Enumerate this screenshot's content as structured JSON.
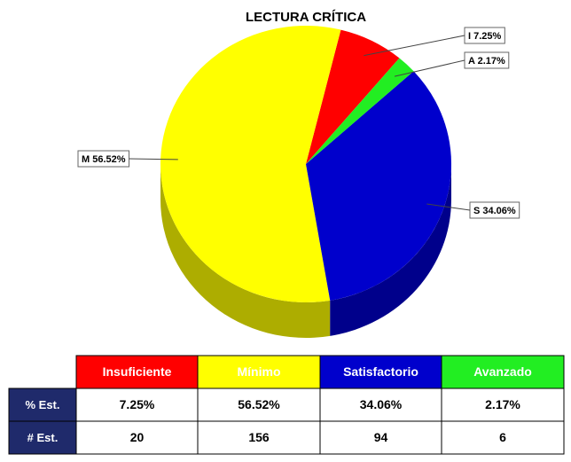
{
  "chart_data": {
    "type": "pie",
    "title": "LECTURA CRÍTICA",
    "categories": [
      "Insuficiente",
      "Mínimo",
      "Satisfactorio",
      "Avanzado"
    ],
    "values": [
      7.25,
      56.52,
      34.06,
      2.17
    ],
    "value_labels": [
      "I 7.25%",
      "M 56.52%",
      "S 34.06%",
      "A 2.17%"
    ],
    "colors": [
      "#ff0000",
      "#ffff00",
      "#0000cc",
      "#22ee22"
    ]
  },
  "table": {
    "row_labels": [
      "% Est.",
      "# Est."
    ],
    "rows": [
      [
        "7.25%",
        "56.52%",
        "34.06%",
        "2.17%"
      ],
      [
        20,
        156,
        94,
        6
      ]
    ]
  }
}
